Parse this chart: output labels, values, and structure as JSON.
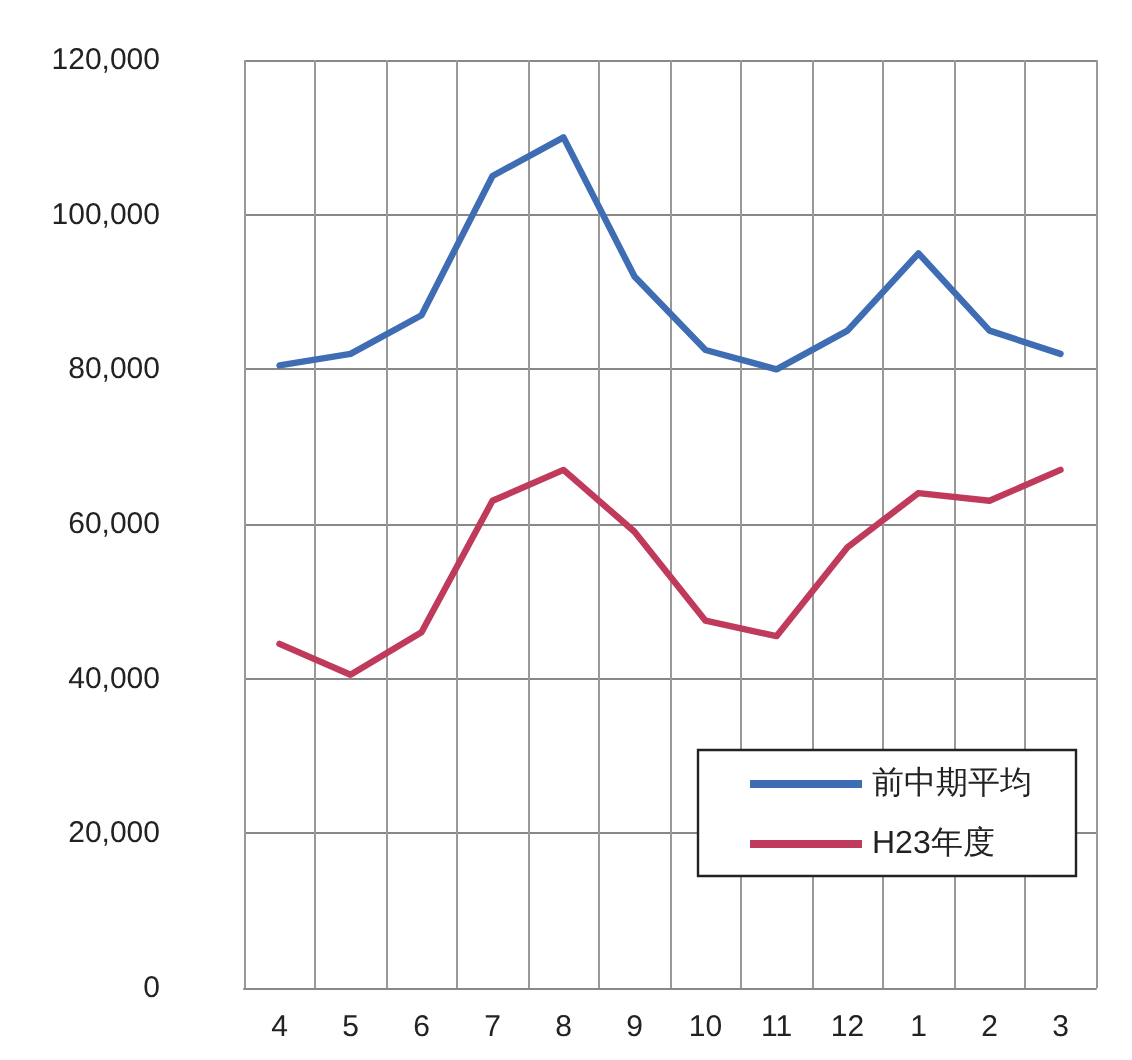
{
  "chart_data": {
    "type": "line",
    "categories": [
      "4",
      "5",
      "6",
      "7",
      "8",
      "9",
      "10",
      "11",
      "12",
      "1",
      "2",
      "3"
    ],
    "series": [
      {
        "name": "前中期平均",
        "color": "#3f6db3",
        "values": [
          80500,
          82000,
          87000,
          105000,
          110000,
          92000,
          82500,
          80000,
          85000,
          95000,
          85000,
          82000
        ]
      },
      {
        "name": "H23年度",
        "color": "#c03a5c",
        "values": [
          44500,
          40500,
          46000,
          63000,
          67000,
          59000,
          47500,
          45500,
          57000,
          64000,
          63000,
          67000
        ]
      }
    ],
    "ylim": [
      0,
      120000
    ],
    "yticks": [
      {
        "value": 0,
        "label": "0"
      },
      {
        "value": 20000,
        "label": "20,000"
      },
      {
        "value": 40000,
        "label": "40,000"
      },
      {
        "value": 60000,
        "label": "60,000"
      },
      {
        "value": 80000,
        "label": "80,000"
      },
      {
        "value": 100000,
        "label": "100,000"
      },
      {
        "value": 120000,
        "label": "120,000"
      }
    ],
    "grid": true,
    "legend": "bottom right",
    "marker": "none",
    "line_style": "solid"
  }
}
